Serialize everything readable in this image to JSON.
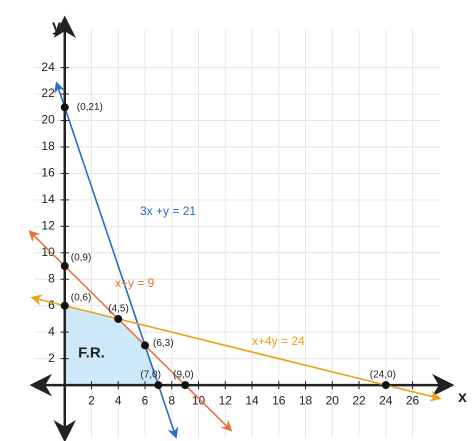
{
  "chart_data": {
    "type": "line",
    "x_label": "x",
    "y_label": "y",
    "xlim": [
      -2.3,
      28.8
    ],
    "ylim": [
      -4,
      27.6
    ],
    "xticks": [
      2,
      4,
      6,
      8,
      10,
      12,
      14,
      16,
      18,
      20,
      22,
      24,
      26
    ],
    "yticks": [
      2,
      4,
      6,
      8,
      10,
      12,
      14,
      16,
      18,
      20,
      22,
      24
    ],
    "grid": true,
    "series": [
      {
        "name": "3x +y = 21",
        "color": "#2b6cc4",
        "x": [
          -0.6,
          8.3
        ],
        "values": [
          22.8,
          -3.9
        ]
      },
      {
        "name": "x+y = 9",
        "color": "#e8743b",
        "x": [
          -2.6,
          12.4
        ],
        "values": [
          11.6,
          -3.4
        ]
      },
      {
        "name": "x+4y = 24",
        "color": "#e8a317",
        "x": [
          -2.4,
          28
        ],
        "values": [
          6.6,
          -1
        ]
      }
    ],
    "region": {
      "label": "F.R.",
      "color": "#cde8f8",
      "x": [
        0,
        0,
        4,
        6,
        7
      ],
      "values": [
        0,
        6,
        5,
        3,
        0
      ]
    },
    "points": {
      "x": [
        0,
        0,
        0,
        4,
        6,
        7,
        9,
        24
      ],
      "values": [
        21,
        9,
        6,
        5,
        3,
        0,
        0,
        0
      ],
      "labels": [
        "(0,21)",
        "(0,9)",
        "(0,6)",
        "(4,5)",
        "(6,3)",
        "(7,0)",
        "(9,0)",
        "(24,0)"
      ]
    }
  }
}
